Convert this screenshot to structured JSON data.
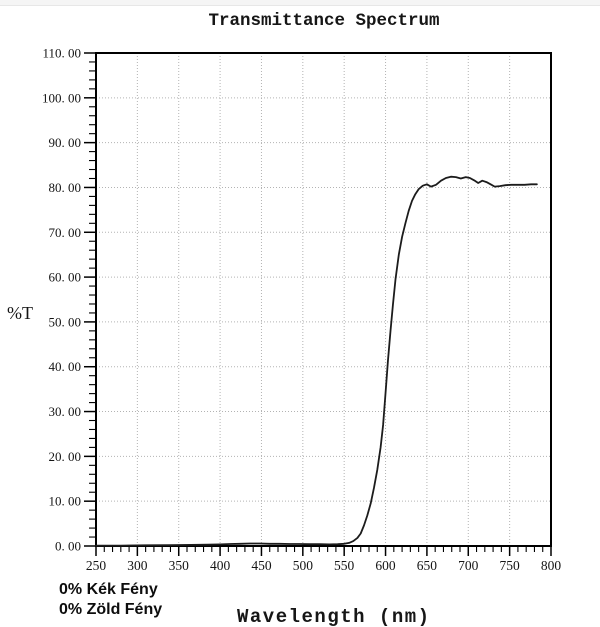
{
  "colors": {
    "background": "#ffffff",
    "top_strip": "#f5f5f5",
    "axis": "#000000",
    "grid": "#b3b3b3",
    "curve": "#1c1c1c",
    "text": "#111111"
  },
  "annotations": {
    "blue_light": "0% Kék Fény",
    "green_light": "0% Zöld Fény"
  },
  "chart_data": {
    "type": "line",
    "title": "Transmittance Spectrum",
    "xlabel": "Wavelength (nm)",
    "ylabel": "%T",
    "xlim": [
      250,
      800
    ],
    "ylim": [
      0,
      110
    ],
    "grid": "dotted gridlines at all major ticks, light gray",
    "legend": "none",
    "x_ticks": [
      250,
      300,
      350,
      400,
      450,
      500,
      550,
      600,
      650,
      700,
      750,
      800
    ],
    "x_tick_labels": [
      "250",
      "300",
      "350",
      "400",
      "450",
      "500",
      "550",
      "600",
      "650",
      "700",
      "750",
      "800"
    ],
    "x_minor_tick_step": 10,
    "y_ticks": [
      0,
      10,
      20,
      30,
      40,
      50,
      60,
      70,
      80,
      90,
      100,
      110
    ],
    "y_tick_labels": [
      "0. 00",
      "10. 00",
      "20. 00",
      "30. 00",
      "40. 00",
      "50. 00",
      "60. 00",
      "70. 00",
      "80. 00",
      "90. 00",
      "100. 00",
      "110. 00"
    ],
    "y_minor_tick_step": 2,
    "series": [
      {
        "name": "transmittance",
        "color": "#1c1c1c",
        "x": [
          250,
          280,
          310,
          340,
          365,
          385,
          400,
          412,
          424,
          436,
          448,
          460,
          472,
          484,
          496,
          508,
          520,
          532,
          542,
          550,
          556,
          561,
          566,
          570,
          574,
          578,
          582,
          586,
          590,
          594,
          597,
          600,
          603,
          606,
          609,
          612,
          616,
          620,
          624,
          628,
          632,
          636,
          640,
          645,
          650,
          655,
          661,
          667,
          673,
          679,
          685,
          691,
          697,
          702,
          707,
          712,
          717,
          722,
          727,
          732,
          738,
          745,
          752,
          760,
          768,
          776,
          783
        ],
        "y": [
          0.1,
          0.1,
          0.15,
          0.2,
          0.25,
          0.3,
          0.35,
          0.45,
          0.5,
          0.55,
          0.55,
          0.5,
          0.5,
          0.45,
          0.45,
          0.4,
          0.4,
          0.35,
          0.4,
          0.5,
          0.7,
          1.1,
          1.8,
          2.8,
          4.6,
          6.8,
          9.5,
          13.0,
          17.0,
          22.0,
          27.0,
          34.0,
          41.5,
          48.0,
          54.0,
          59.5,
          65.0,
          69.0,
          72.0,
          74.8,
          77.0,
          78.5,
          79.6,
          80.4,
          80.7,
          80.2,
          80.6,
          81.5,
          82.1,
          82.4,
          82.3,
          82.0,
          82.3,
          82.1,
          81.6,
          81.0,
          81.5,
          81.2,
          80.7,
          80.2,
          80.3,
          80.5,
          80.6,
          80.6,
          80.6,
          80.7,
          80.7
        ]
      }
    ]
  }
}
